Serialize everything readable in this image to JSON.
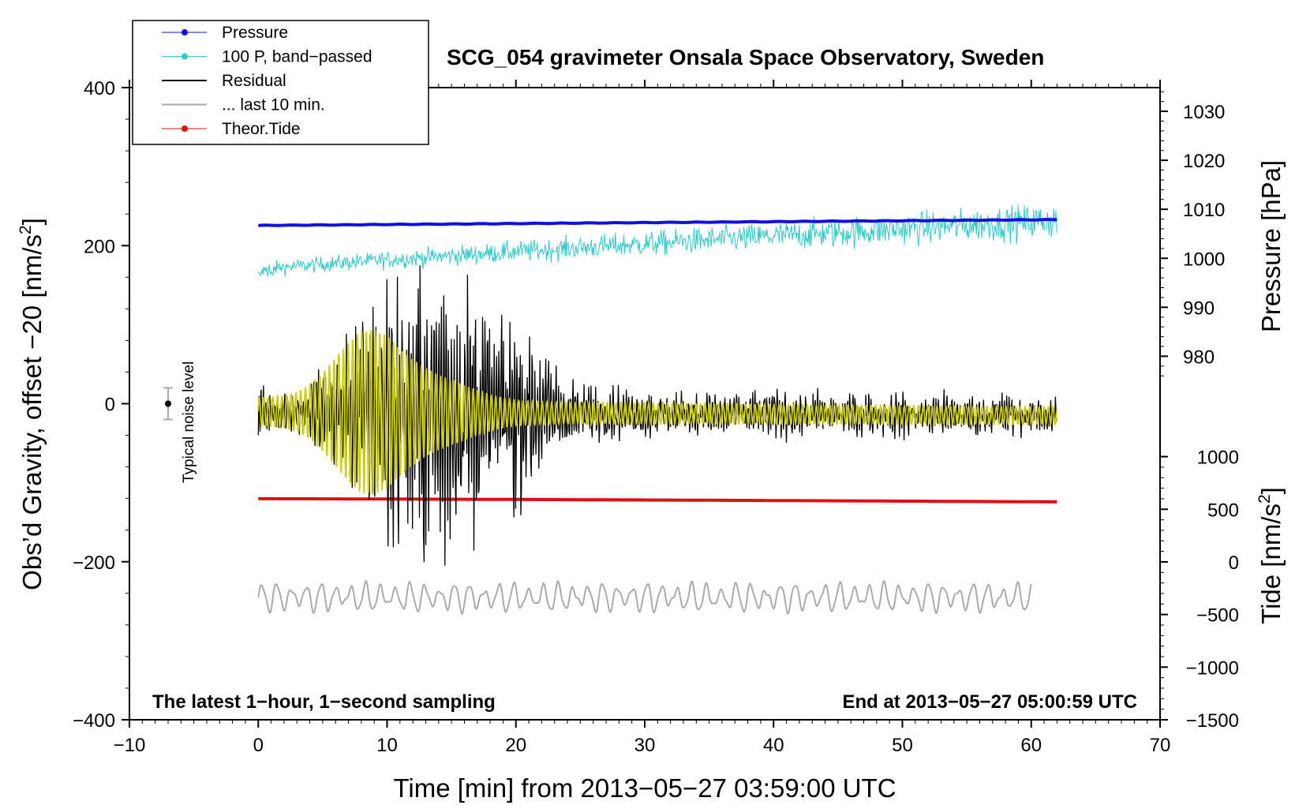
{
  "chart_data": {
    "type": "line",
    "title": "SCG_054 gravimeter Onsala Space Observatory, Sweden",
    "xlabel": "Time [min] from 2013−05−27 03:59:00 UTC",
    "ylabel_left_prefix": "Obs’d Gravity, offset −20 [nm/s",
    "ylabel_left_suffix": "]",
    "ylabel_pressure": "Pressure [hPa]",
    "ylabel_tide_prefix": "Tide [nm/s",
    "ylabel_tide_suffix": "]",
    "unit_exponent": "2",
    "xlim": [
      -10,
      70
    ],
    "ylim": [
      -400,
      400
    ],
    "x_ticks": [
      -10,
      0,
      10,
      20,
      30,
      40,
      50,
      60,
      70
    ],
    "x_tick_labels": [
      "−10",
      "0",
      "10",
      "20",
      "30",
      "40",
      "50",
      "60",
      "70"
    ],
    "y_ticks": [
      -400,
      -200,
      0,
      200,
      400
    ],
    "y_tick_labels": [
      "−400",
      "−200",
      "0",
      "200",
      "400"
    ],
    "pressure_ticks": [
      980,
      990,
      1000,
      1010,
      1020,
      1030
    ],
    "pressure_tick_labels": [
      "980",
      "990",
      "1000",
      "1010",
      "1020",
      "1030"
    ],
    "pressure_map": {
      "hpa": [
        980,
        1030
      ],
      "left_axis": [
        60,
        370
      ]
    },
    "tide_ticks": [
      -1500,
      -1000,
      -500,
      0,
      500,
      1000
    ],
    "tide_tick_labels": [
      "−1500",
      "−1000",
      "−500",
      "0",
      "500",
      "1000"
    ],
    "tide_map": {
      "nm_s2": [
        -1500,
        1000
      ],
      "left_axis": [
        -400,
        -67
      ]
    },
    "legend": {
      "position": "top-left",
      "entries": [
        {
          "label": "Pressure",
          "color": "#1010e0",
          "style": "line-dot"
        },
        {
          "label": "100 P, band−passed",
          "color": "#30c8c8",
          "style": "line-dot"
        },
        {
          "label": "Residual",
          "color": "#000000",
          "style": "line"
        },
        {
          "label": "... last 10 min.",
          "color": "#aaaaaa",
          "style": "line"
        },
        {
          "label": "Theor.Tide",
          "color": "#e01010",
          "style": "line-dot"
        }
      ]
    },
    "annotations": {
      "left_note": "The latest 1−hour, 1−second sampling",
      "right_note": "End at 2013−05−27 05:00:59 UTC",
      "noise_label": "Typical noise level"
    },
    "noise_bar": {
      "x": -7,
      "y": 0,
      "half_range": 20
    },
    "series": [
      {
        "name": "Pressure",
        "color": "#1010e0",
        "x_range": [
          0,
          62
        ],
        "trend": [
          1006.7,
          1007.9
        ]
      },
      {
        "name": "100 P, band−passed",
        "color": "#30c8c8",
        "x_range": [
          0,
          62
        ],
        "trend_left_axis": [
          170,
          232
        ]
      },
      {
        "name": "Residual",
        "color": "#000000",
        "x_range": [
          0,
          62
        ],
        "baseline_left_axis": [
          -10,
          -15
        ],
        "peak_amplitude": 185,
        "peak_time": 13
      },
      {
        "name": "Filtered residual",
        "color": "#cccc10",
        "x_range": [
          0,
          62
        ],
        "baseline_left_axis": [
          -10,
          -15
        ],
        "peak_amplitude": 100,
        "peak_time": 8.5
      },
      {
        "name": "Theor.Tide",
        "color": "#e01010",
        "x_range": [
          0,
          62
        ],
        "trend_nm_s2": [
          600,
          570
        ]
      },
      {
        "name": "... last 10 min.",
        "color": "#aaaaaa",
        "x_range": [
          0,
          60
        ],
        "baseline_left_axis": -245,
        "amplitude": 18
      }
    ],
    "colors": {
      "pressure": "#1010e0",
      "bandpassed": "#30c8c8",
      "residual": "#000000",
      "filtered": "#cccc10",
      "tide": "#e01010",
      "last10": "#aaaaaa",
      "noise_bar": "#aaaaaa"
    }
  }
}
